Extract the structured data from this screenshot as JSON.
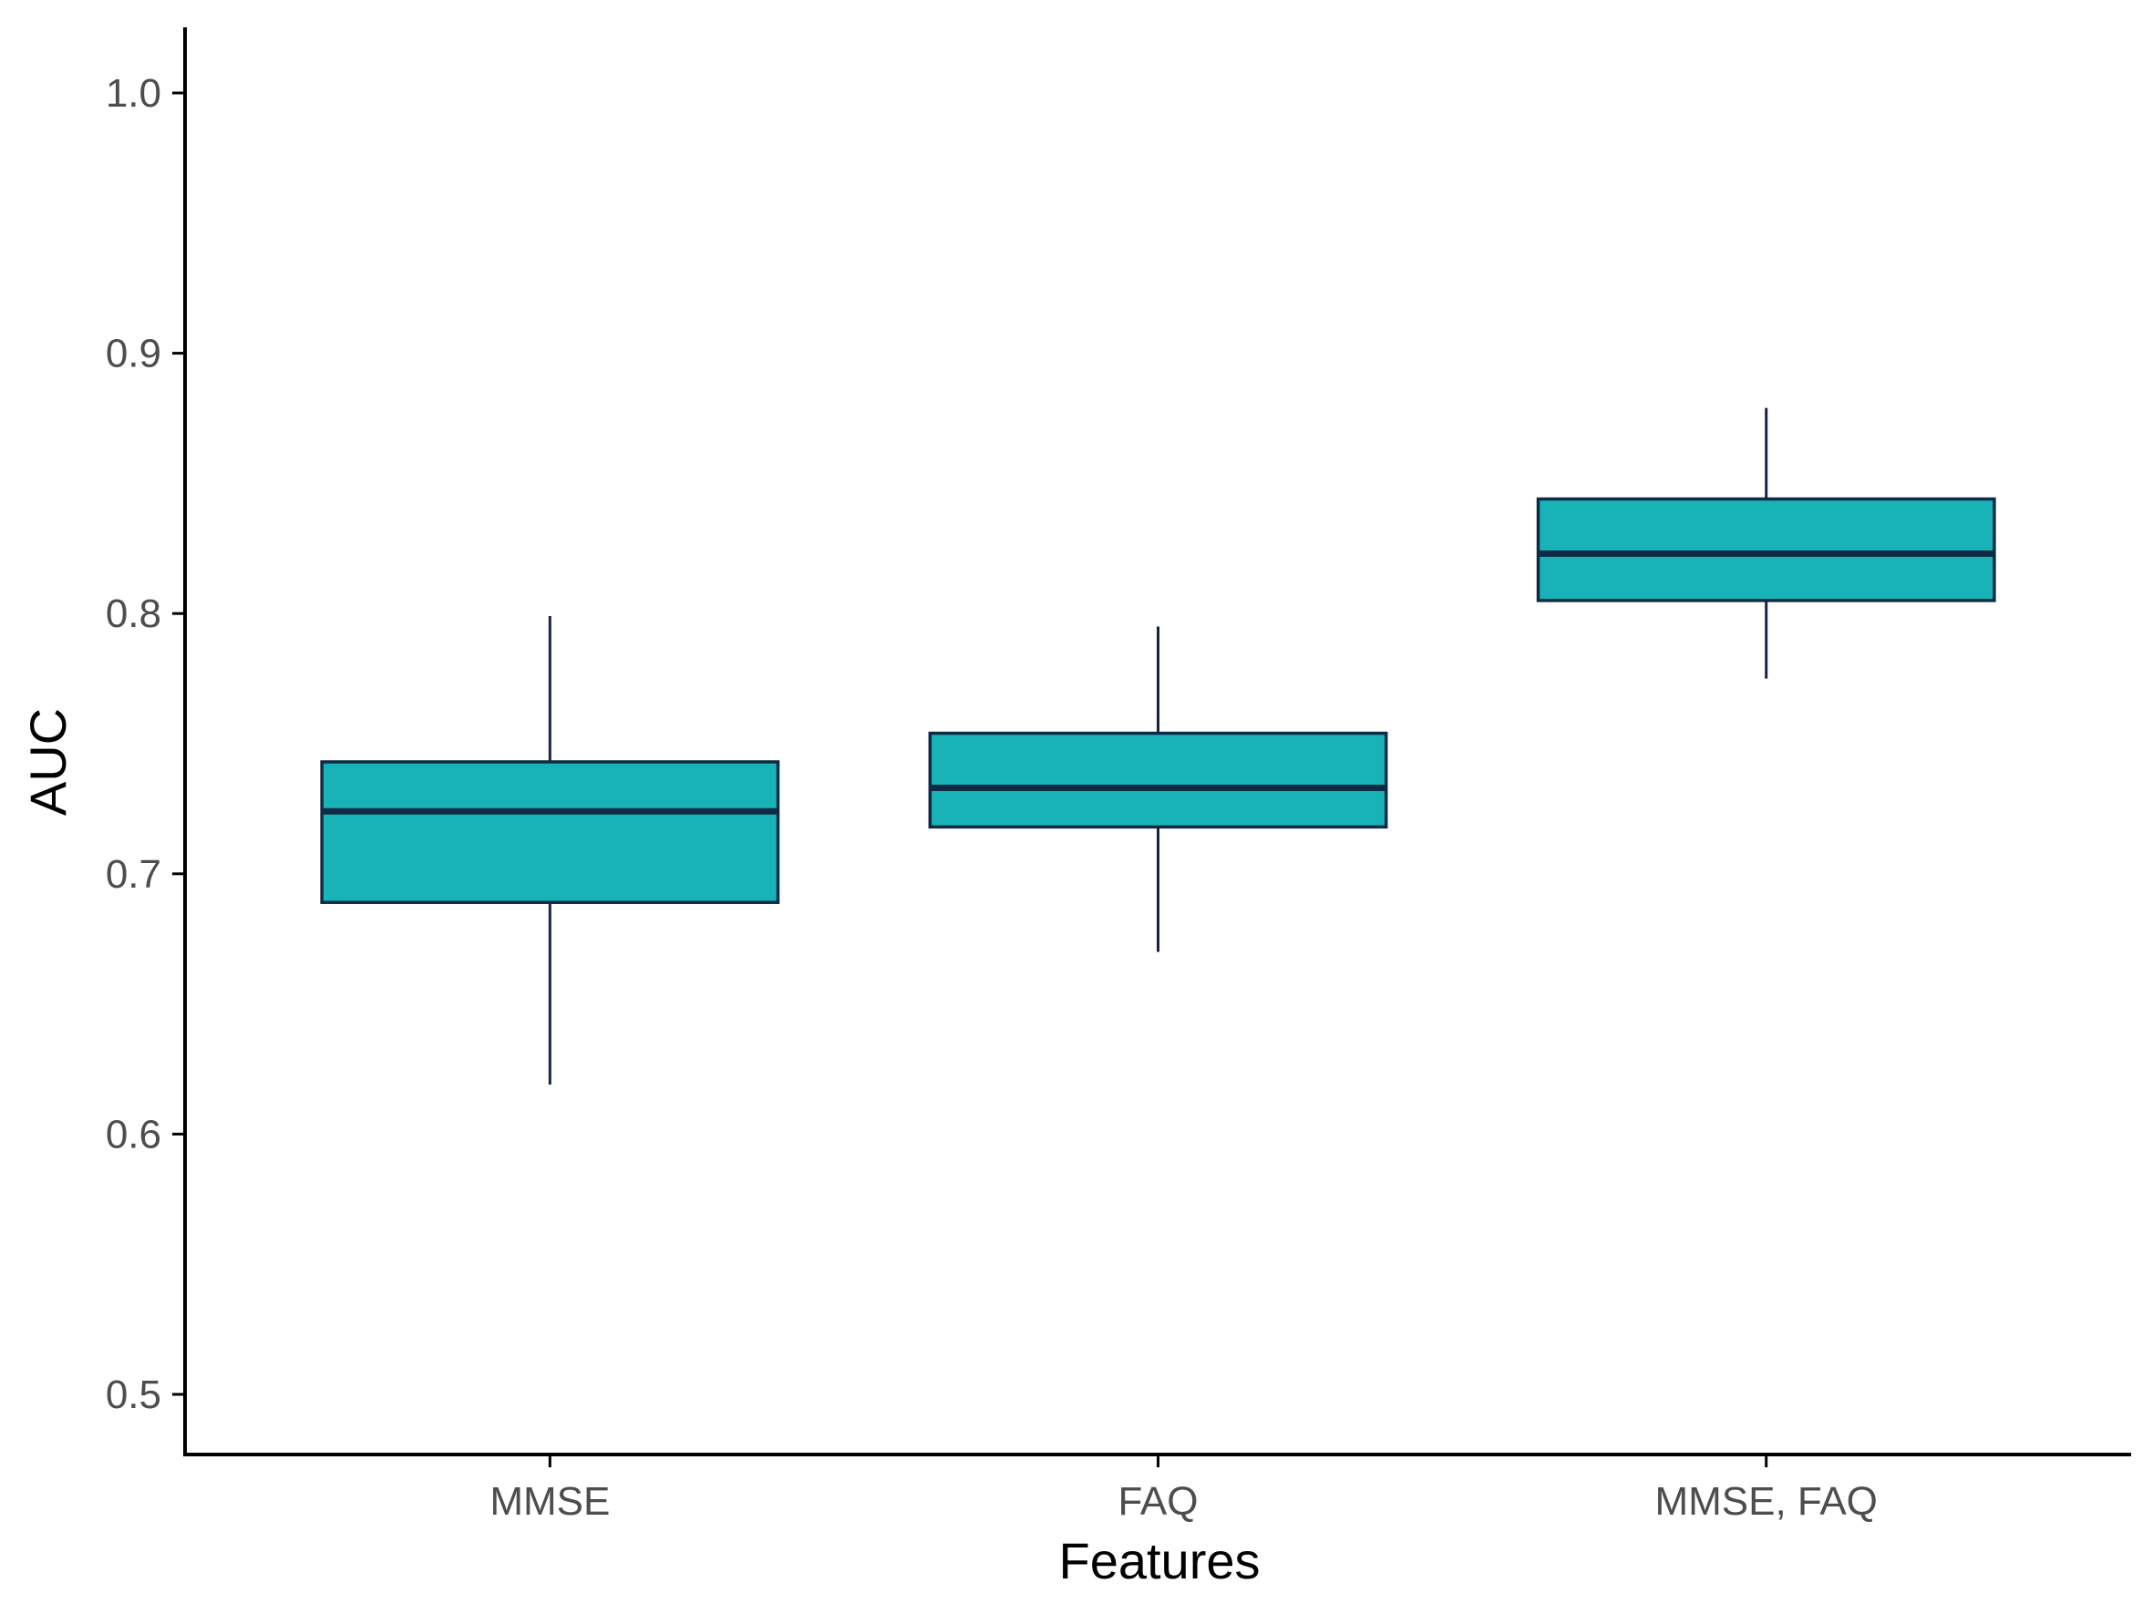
{
  "chart_data": {
    "type": "boxplot",
    "title": "",
    "xlabel": "Features",
    "ylabel": "AUC",
    "ylim": [
      0.475,
      1.025
    ],
    "yticks": [
      0.5,
      0.6,
      0.7,
      0.8,
      0.9,
      1.0
    ],
    "ytick_labels": [
      "0.5",
      "0.6",
      "0.7",
      "0.8",
      "0.9",
      "1.0"
    ],
    "grid": false,
    "legend": "none",
    "colors": {
      "box_fill": "#17b3b7",
      "box_outline": "#0f2a44",
      "median": "#0f2a44",
      "whisker": "#1a2440",
      "axis": "#000000"
    },
    "categories": [
      "MMSE",
      "FAQ",
      "MMSE, FAQ"
    ],
    "boxes": [
      {
        "category": "MMSE",
        "min": 0.619,
        "q1": 0.689,
        "median": 0.724,
        "q3": 0.743,
        "max": 0.799
      },
      {
        "category": "FAQ",
        "min": 0.67,
        "q1": 0.718,
        "median": 0.733,
        "q3": 0.754,
        "max": 0.795
      },
      {
        "category": "MMSE, FAQ",
        "min": 0.775,
        "q1": 0.805,
        "median": 0.823,
        "q3": 0.844,
        "max": 0.879
      }
    ]
  }
}
